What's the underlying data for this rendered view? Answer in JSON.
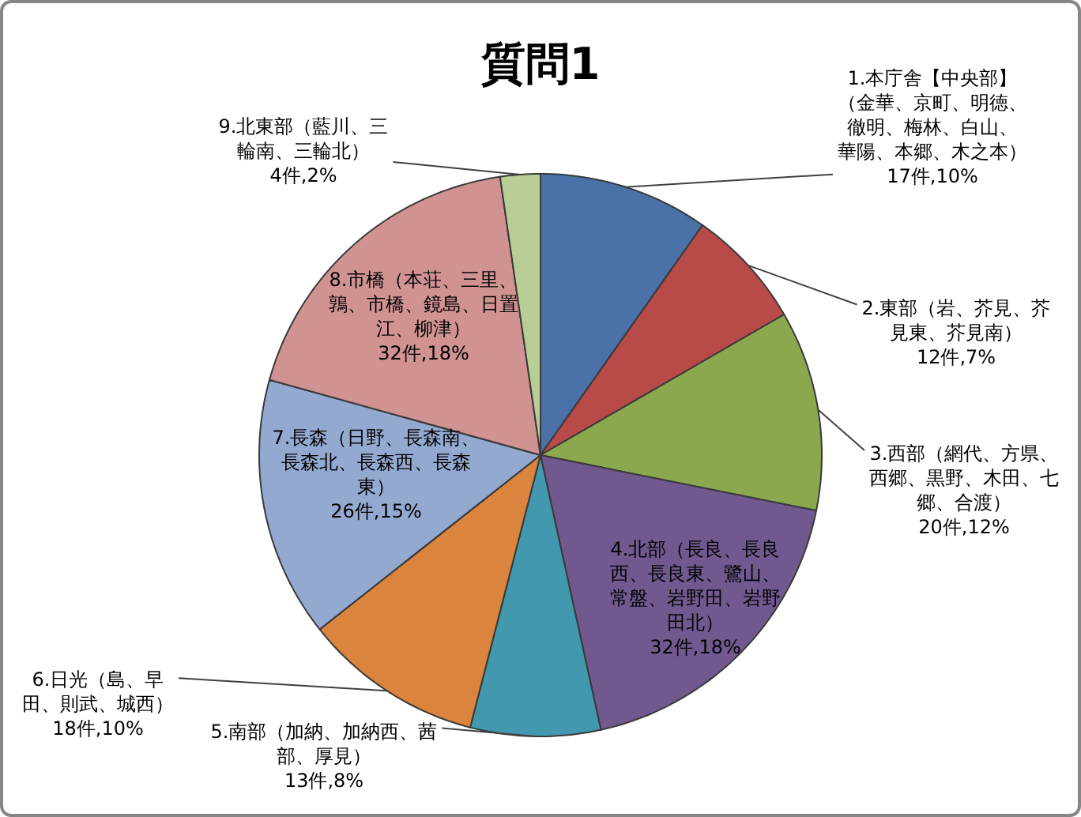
{
  "chart_data": {
    "type": "pie",
    "title": "質問1",
    "categories": [
      "1.本庁舎【中央部】（金華、京町、明徳、徹明、梅林、白山、華陽、本郷、木之本）",
      "2.東部（岩、芥見、芥見東、芥見南）",
      "3.西部（網代、方県、西郷、黒野、木田、七郷、合渡）",
      "4.北部（長良、長良西、長良東、鷺山、常盤、岩野田、岩野田北）",
      "5.南部（加納、加納西、茜部、厚見）",
      "6.日光（島、早田、則武、城西）",
      "7.長森（日野、長森南、長森北、長森西、長森東）",
      "8.市橋（本荘、三里、鶉、市橋、鏡島、日置江、柳津）",
      "9.北東部（藍川、三輪南、三輪北）"
    ],
    "values": [
      17,
      12,
      20,
      32,
      13,
      18,
      26,
      32,
      4
    ],
    "value_labels": [
      "17件,10%",
      "12件,7%",
      "20件,12%",
      "32件,18%",
      "13件,8%",
      "18件,10%",
      "26件,15%",
      "32件,18%",
      "4件,2%"
    ],
    "colors": [
      "#4a72a8",
      "#b84a47",
      "#8ca84e",
      "#71588f",
      "#4198af",
      "#db843d",
      "#93a9d0",
      "#d09392",
      "#b9cd96"
    ]
  }
}
